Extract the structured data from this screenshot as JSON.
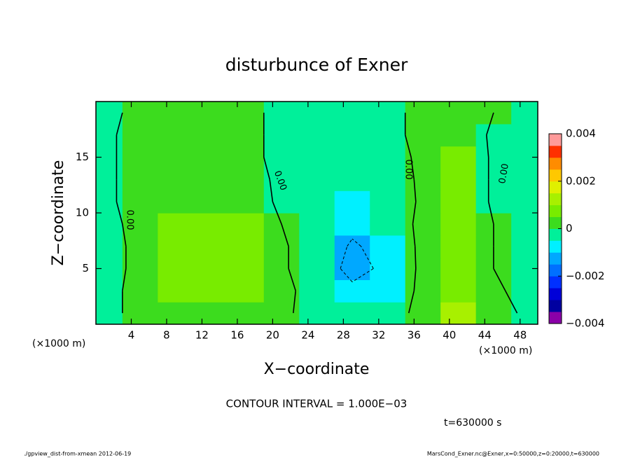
{
  "chart_data": {
    "type": "contour",
    "title": "disturbunce of Exner",
    "xlabel": "X−coordinate",
    "ylabel": "Z−coordinate",
    "xunit": "(×1000 m)",
    "yunit": "(×1000 m)",
    "xlim": [
      0,
      50
    ],
    "ylim": [
      0,
      20
    ],
    "xticks": [
      4,
      8,
      12,
      16,
      20,
      24,
      28,
      32,
      36,
      40,
      44,
      48
    ],
    "yticks": [
      5,
      10,
      15
    ],
    "x": [
      1,
      5,
      9,
      13,
      17,
      21,
      25,
      29,
      33,
      37,
      41,
      45,
      49
    ],
    "y": [
      1,
      3,
      5,
      7,
      9,
      11,
      13,
      15,
      17,
      19
    ],
    "z": [
      [
        -0.0001,
        0.0001,
        0.0003,
        0.0004,
        0.0003,
        0.0001,
        -0.0002,
        -0.0004,
        -0.0003,
        0.0002,
        0.0011,
        0.0002,
        -0.0001
      ],
      [
        -0.0002,
        0.0002,
        0.0006,
        0.0007,
        0.0006,
        0.0002,
        -0.0003,
        -0.0008,
        -0.0006,
        0.0002,
        0.0007,
        0.0001,
        -0.0002
      ],
      [
        -0.0003,
        0.0002,
        0.0007,
        0.0008,
        0.0007,
        0.0001,
        -0.0004,
        -0.0013,
        -0.0008,
        0.0002,
        0.0006,
        0.0,
        -0.0003
      ],
      [
        -0.0003,
        0.0002,
        0.0007,
        0.0008,
        0.0007,
        0.0001,
        -0.0004,
        -0.0011,
        -0.0007,
        0.0002,
        0.0006,
        0.0,
        -0.0003
      ],
      [
        -0.0002,
        0.0002,
        0.0006,
        0.0007,
        0.0006,
        0.0,
        -0.0004,
        -0.0008,
        -0.0005,
        0.0002,
        0.0006,
        0.0,
        -0.0002
      ],
      [
        -0.0001,
        0.0002,
        0.0003,
        0.0004,
        0.0003,
        -0.0001,
        -0.0003,
        -0.0006,
        -0.0004,
        0.0001,
        0.0006,
        -0.0001,
        -0.0001
      ],
      [
        -0.0001,
        0.0002,
        0.0003,
        0.0003,
        0.0002,
        -0.0001,
        -0.0003,
        -0.0005,
        -0.0003,
        0.0001,
        0.0006,
        -0.0001,
        -0.0001
      ],
      [
        -0.0001,
        0.0002,
        0.0003,
        0.0003,
        0.0001,
        -0.0001,
        -0.0002,
        -0.0004,
        -0.0002,
        0.0001,
        0.0006,
        -0.0001,
        -0.0001
      ],
      [
        -0.0001,
        0.0002,
        0.0003,
        0.0002,
        0.0001,
        -0.0001,
        -0.0001,
        -0.0002,
        -0.0001,
        0.0001,
        0.0004,
        -0.0001,
        -0.0001
      ],
      [
        -0.0001,
        0.0001,
        0.0002,
        0.0002,
        0.0001,
        -0.0001,
        -0.0001,
        -0.0001,
        -0.0001,
        0.0001,
        0.0003,
        0.0,
        -0.0001
      ]
    ],
    "levels": [
      -0.004,
      -0.0035,
      -0.003,
      -0.0025,
      -0.002,
      -0.0015,
      -0.001,
      -0.0005,
      0,
      0.0005,
      0.001,
      0.0015,
      0.002,
      0.0025,
      0.003,
      0.0035,
      0.004
    ],
    "colors": [
      "#8a00a8",
      "#0000a0",
      "#0000d8",
      "#0030ff",
      "#0070ff",
      "#00a8ff",
      "#00f0ff",
      "#00f09a",
      "#3cdc1e",
      "#78ec00",
      "#a8f000",
      "#e0f000",
      "#ffc800",
      "#ff8c00",
      "#ff3000",
      "#ff9a9a"
    ],
    "colorbar_ticks": [
      0.004,
      0.002,
      0,
      {
        "value": -0.002,
        "label": "−0.002"
      },
      {
        "value": -0.004,
        "label": "−0.004"
      }
    ],
    "contour_levels": [
      -0.001,
      0
    ],
    "contour_dashed": [
      true,
      false
    ],
    "contour_label": "0.00",
    "contour_interval": "CONTOUR INTERVAL = 1.000E−03",
    "time_label": "t=630000 s",
    "footer_left": "./gpview_dist-from-xmean  2012-06-19",
    "footer_right": "MarsCond_Exner.nc@Exner,x=0:50000,z=0:20000,t=630000"
  }
}
